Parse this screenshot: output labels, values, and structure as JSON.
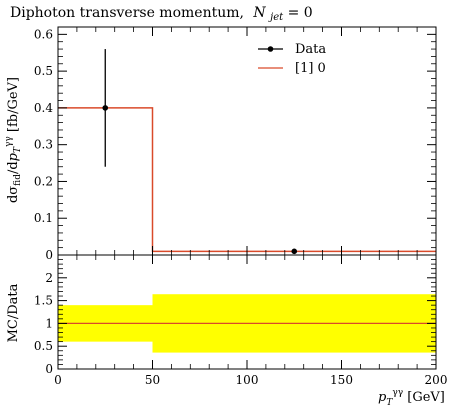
{
  "colors": {
    "data": "#000000",
    "mc": "#d94a2a",
    "band": "#ffff00",
    "ratio_line": "#d94a2a"
  },
  "chart_data": [
    {
      "type": "line",
      "title": "Diphoton transverse momentum,",
      "title_math": "N_jet = 0",
      "title_math_base": "N",
      "title_math_sub": "jet",
      "title_math_rest": " = 0",
      "ylabel": "dσ_fid/dp_T^γγ [fb/GeV]",
      "xlim": [
        0,
        200
      ],
      "ylim": [
        0,
        0.62
      ],
      "yticks": [
        0,
        0.1,
        0.2,
        0.3,
        0.4,
        0.5,
        0.6
      ],
      "ytick_labels": [
        "0",
        "0.1",
        "0.2",
        "0.3",
        "0.4",
        "0.5",
        "0.6"
      ],
      "xticks": [
        0,
        50,
        100,
        150,
        200
      ],
      "legend": {
        "placement": "top-right",
        "entries": [
          "Data",
          "[1] 0"
        ]
      },
      "series": [
        {
          "name": "Data",
          "kind": "points-with-errors",
          "points": [
            {
              "x": 25,
              "y": 0.4,
              "yerr_low": 0.24,
              "yerr_high": 0.56
            },
            {
              "x": 125,
              "y": 0.01,
              "yerr_low": 0.008,
              "yerr_high": 0.012
            }
          ]
        },
        {
          "name": "[1] 0",
          "kind": "histogram",
          "bins": [
            {
              "x_low": 0,
              "x_high": 50,
              "y": 0.4
            },
            {
              "x_low": 50,
              "x_high": 200,
              "y": 0.01
            }
          ]
        }
      ]
    },
    {
      "type": "area",
      "ylabel": "MC/Data",
      "xlabel": "p_T^γγ [GeV]",
      "xlim": [
        0,
        200
      ],
      "ylim": [
        0,
        2.5
      ],
      "yticks": [
        0,
        0.5,
        1,
        1.5,
        2
      ],
      "ytick_labels": [
        "0",
        "0.5",
        "1",
        "1.5",
        "2"
      ],
      "xticks": [
        0,
        50,
        100,
        150,
        200
      ],
      "xtick_labels": [
        "0",
        "50",
        "100",
        "150",
        "200"
      ],
      "band": [
        {
          "x_low": 0,
          "x_high": 50,
          "low": 0.6,
          "high": 1.4
        },
        {
          "x_low": 50,
          "x_high": 200,
          "low": 0.36,
          "high": 1.64
        }
      ],
      "ratio_line": 1.0
    }
  ]
}
